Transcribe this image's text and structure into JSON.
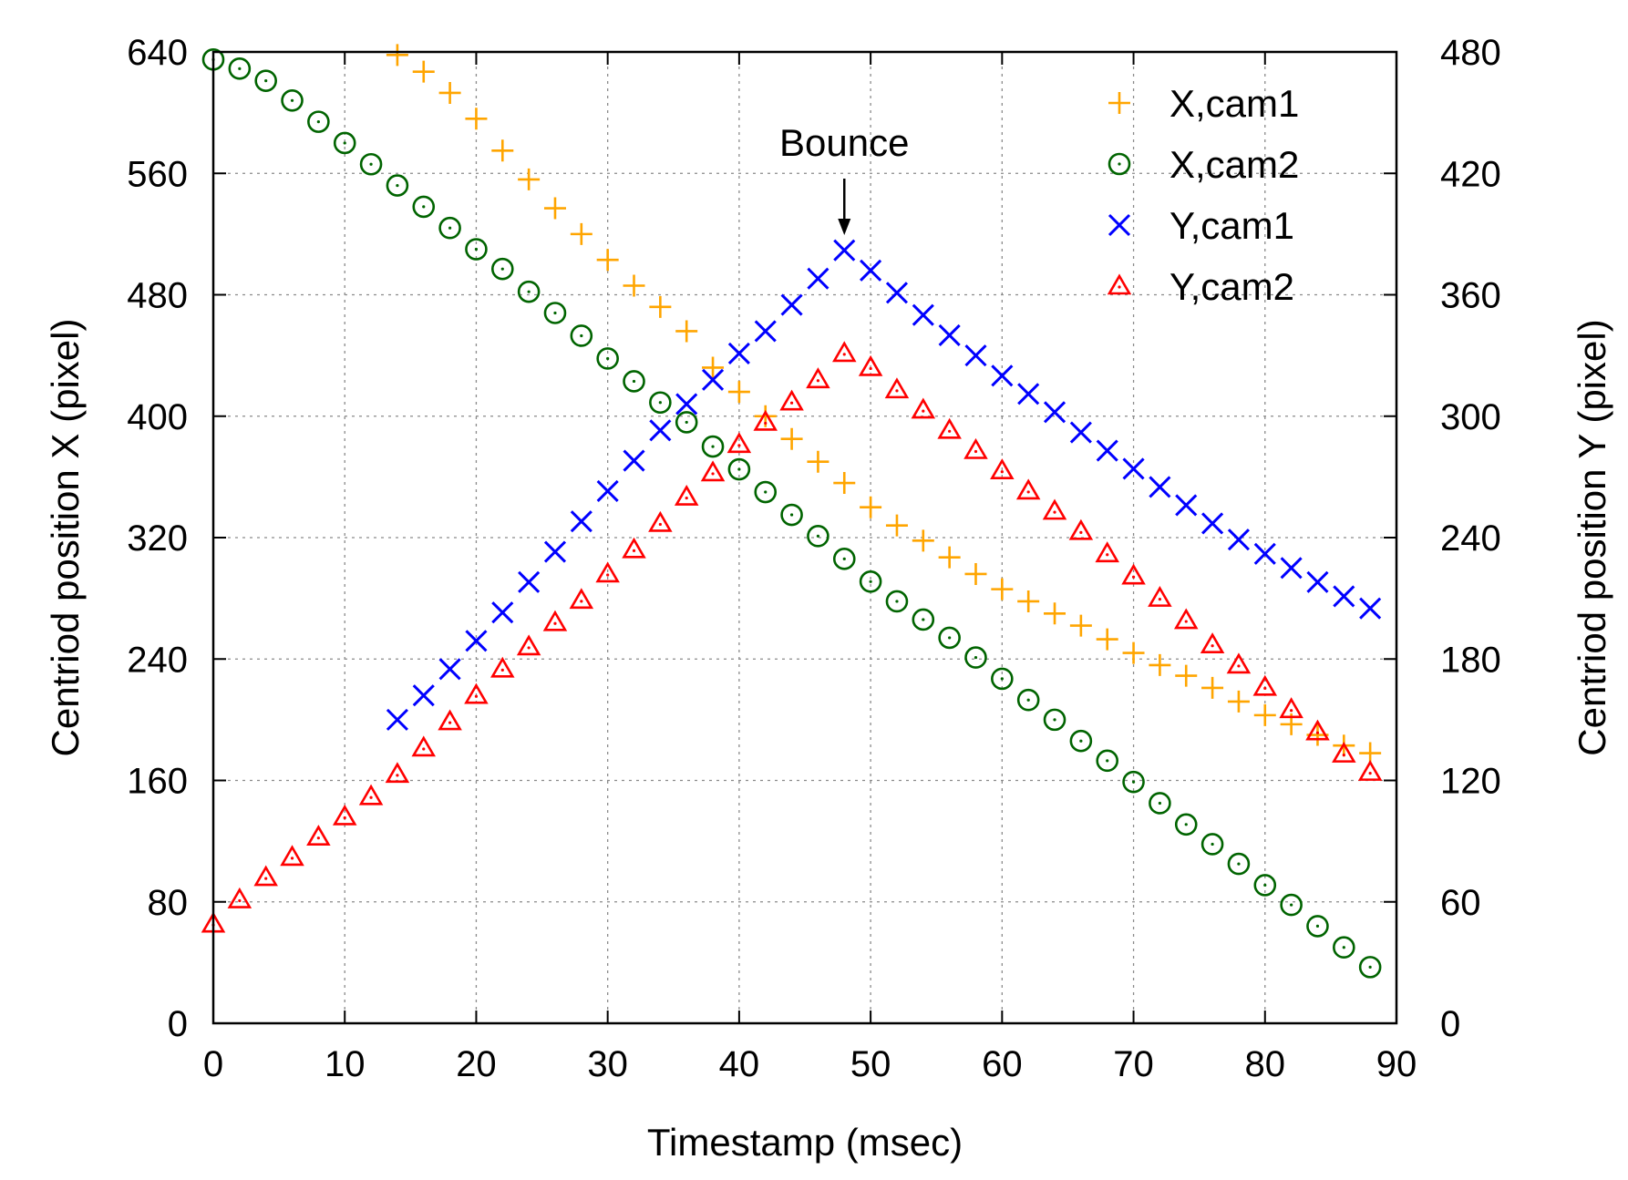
{
  "chart_data": {
    "type": "scatter",
    "title": "",
    "xlabel": "Timestamp (msec)",
    "ylabel": "Centriod position X (pixel)",
    "y2label": "Centriod position Y (pixel)",
    "xlim": [
      0,
      90
    ],
    "ylim": [
      0,
      640
    ],
    "y2lim": [
      0,
      480
    ],
    "xticks": [
      0,
      10,
      20,
      30,
      40,
      50,
      60,
      70,
      80,
      90
    ],
    "yticks": [
      0,
      80,
      160,
      240,
      320,
      400,
      480,
      560,
      640
    ],
    "y2ticks": [
      0,
      60,
      120,
      180,
      240,
      300,
      360,
      420,
      480
    ],
    "grid": true,
    "legend_position": "top-right",
    "annotation": {
      "text": "Bounce",
      "x": 48,
      "y2": 385
    },
    "series": [
      {
        "name": "X,cam1",
        "axis": "left",
        "marker": "plus",
        "color": "#ffa500",
        "x": [
          14,
          16,
          18,
          20,
          22,
          24,
          26,
          28,
          30,
          32,
          34,
          36,
          38,
          40,
          42,
          44,
          46,
          48,
          50,
          52,
          54,
          56,
          58,
          60,
          62,
          64,
          66,
          68,
          70,
          72,
          74,
          76,
          78,
          80,
          82,
          84,
          86,
          88
        ],
        "y": [
          638,
          627,
          613,
          596,
          575,
          556,
          537,
          520,
          503,
          486,
          472,
          456,
          432,
          416,
          400,
          385,
          370,
          356,
          340,
          328,
          318,
          307,
          296,
          286,
          278,
          270,
          262,
          253,
          244,
          236,
          229,
          221,
          212,
          203,
          197,
          190,
          183,
          178
        ]
      },
      {
        "name": "X,cam2",
        "axis": "left",
        "marker": "circle",
        "color": "#006400",
        "x": [
          0,
          2,
          4,
          6,
          8,
          10,
          12,
          14,
          16,
          18,
          20,
          22,
          24,
          26,
          28,
          30,
          32,
          34,
          36,
          38,
          40,
          42,
          44,
          46,
          48,
          50,
          52,
          54,
          56,
          58,
          60,
          62,
          64,
          66,
          68,
          70,
          72,
          74,
          76,
          78,
          80,
          82,
          84,
          86,
          88
        ],
        "y": [
          635,
          629,
          621,
          608,
          594,
          580,
          566,
          552,
          538,
          524,
          510,
          497,
          482,
          468,
          453,
          438,
          423,
          409,
          396,
          380,
          365,
          350,
          335,
          321,
          306,
          291,
          278,
          266,
          254,
          241,
          227,
          213,
          200,
          186,
          173,
          159,
          145,
          131,
          118,
          105,
          91,
          78,
          64,
          50,
          37
        ]
      },
      {
        "name": "Y,cam1",
        "axis": "right",
        "marker": "cross",
        "color": "#0000ff",
        "x": [
          14,
          16,
          18,
          20,
          22,
          24,
          26,
          28,
          30,
          32,
          34,
          36,
          38,
          40,
          42,
          44,
          46,
          48,
          50,
          52,
          54,
          56,
          58,
          60,
          62,
          64,
          66,
          68,
          70,
          72,
          74,
          76,
          78,
          80,
          82,
          84,
          86,
          88
        ],
        "y": [
          150,
          162,
          175,
          189,
          203,
          218,
          233,
          248,
          263,
          278,
          293,
          306,
          318,
          331,
          342,
          355,
          368,
          382,
          372,
          361,
          350,
          340,
          330,
          320,
          311,
          302,
          292,
          283,
          274,
          265,
          256,
          247,
          239,
          232,
          225,
          218,
          211,
          205
        ]
      },
      {
        "name": "Y,cam2",
        "axis": "right",
        "marker": "triangle",
        "color": "#ff0000",
        "x": [
          0,
          2,
          4,
          6,
          8,
          10,
          12,
          14,
          16,
          18,
          20,
          22,
          24,
          26,
          28,
          30,
          32,
          34,
          36,
          38,
          40,
          42,
          44,
          46,
          48,
          50,
          52,
          54,
          56,
          58,
          60,
          62,
          64,
          66,
          68,
          70,
          72,
          74,
          76,
          78,
          80,
          82,
          84,
          86,
          88
        ],
        "y": [
          49,
          61,
          72,
          82,
          92,
          102,
          112,
          123,
          136,
          149,
          162,
          175,
          186,
          198,
          209,
          222,
          234,
          247,
          260,
          272,
          286,
          297,
          307,
          318,
          331,
          324,
          313,
          303,
          293,
          283,
          273,
          263,
          253,
          243,
          232,
          221,
          210,
          199,
          187,
          177,
          166,
          155,
          144,
          133,
          124
        ]
      }
    ]
  }
}
